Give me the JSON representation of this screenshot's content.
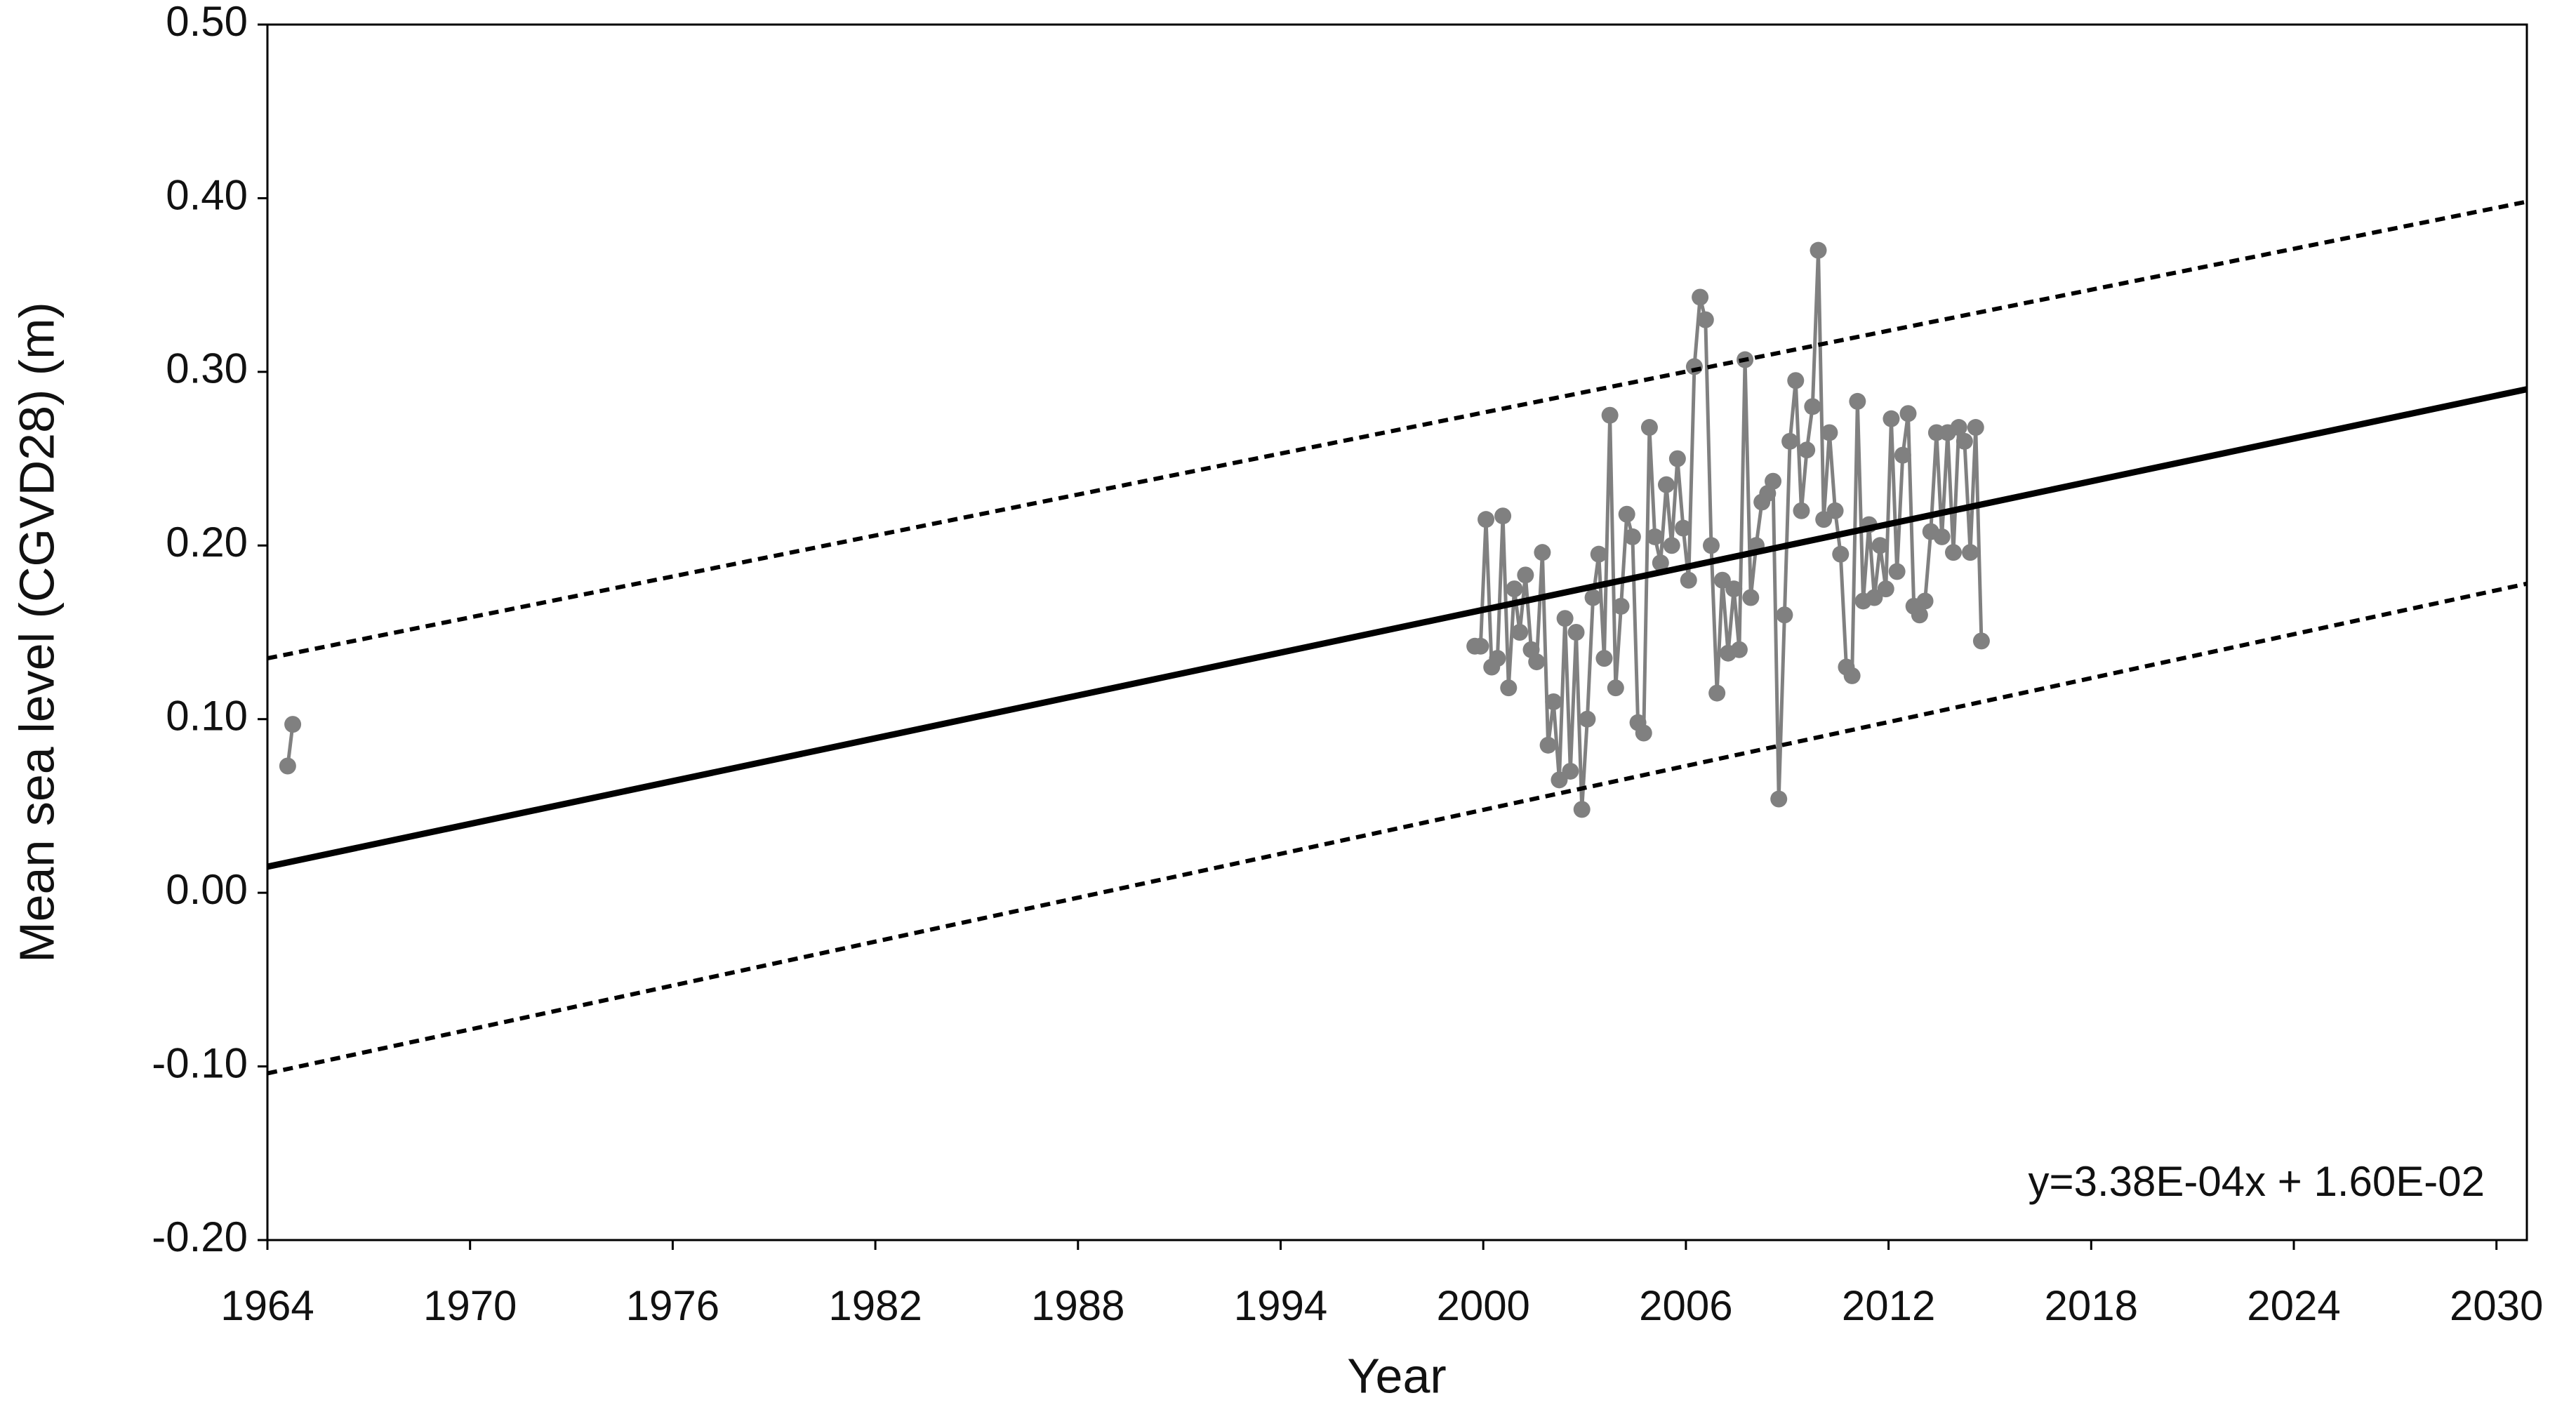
{
  "chart_data": {
    "type": "line",
    "xlabel": "Year",
    "ylabel": "Mean sea level (CGVD28) (m)",
    "annotation": "y=3.38E-04x + 1.60E-02",
    "xlim": [
      1964,
      2030.9
    ],
    "ylim": [
      -0.2,
      0.5
    ],
    "xticks": [
      1964,
      1970,
      1976,
      1982,
      1988,
      1994,
      2000,
      2006,
      2012,
      2018,
      2024,
      2030
    ],
    "yticks": [
      {
        "value": -0.2,
        "label": "-0.20"
      },
      {
        "value": -0.1,
        "label": "-0.10"
      },
      {
        "value": 0,
        "label": "0.00"
      },
      {
        "value": 0.1,
        "label": "0.10"
      },
      {
        "value": 0.2,
        "label": "0.20"
      },
      {
        "value": 0.3,
        "label": "0.30"
      },
      {
        "value": 0.4,
        "label": "0.40"
      },
      {
        "value": 0.5,
        "label": "0.50"
      }
    ],
    "grid": false,
    "series": [
      {
        "color": "#808080",
        "style": "markers",
        "x": [
          1964.6,
          1964.75
        ],
        "values": [
          0.073,
          0.097
        ]
      },
      {
        "color": "#808080",
        "style": "markers",
        "x": [
          1999.75,
          1999.92,
          2000.08,
          2000.25,
          2000.42,
          2000.58,
          2000.75,
          2000.92,
          2001.08,
          2001.25,
          2001.42,
          2001.58,
          2001.75,
          2001.92,
          2002.08,
          2002.25,
          2002.42,
          2002.58,
          2002.75,
          2002.92,
          2003.08,
          2003.25,
          2003.42,
          2003.58,
          2003.75,
          2003.92,
          2004.08,
          2004.25,
          2004.42,
          2004.58,
          2004.75,
          2004.92,
          2005.08,
          2005.25,
          2005.42,
          2005.58,
          2005.75,
          2005.92,
          2006.08,
          2006.25,
          2006.42,
          2006.58,
          2006.75,
          2006.92,
          2007.08,
          2007.25,
          2007.42,
          2007.58,
          2007.75,
          2007.92,
          2008.08,
          2008.25,
          2008.42,
          2008.58,
          2008.75,
          2008.92,
          2009.08,
          2009.25,
          2009.42,
          2009.58,
          2009.75,
          2009.92,
          2010.08,
          2010.25,
          2010.42,
          2010.58,
          2010.75,
          2010.92,
          2011.08,
          2011.25,
          2011.42,
          2011.58,
          2011.75,
          2011.92,
          2012.08,
          2012.25,
          2012.42,
          2012.58,
          2012.75,
          2012.92,
          2013.08,
          2013.25,
          2013.42,
          2013.58,
          2013.75,
          2013.92,
          2014.08,
          2014.25,
          2014.42,
          2014.58,
          2014.75
        ],
        "values": [
          0.142,
          0.142,
          0.215,
          0.13,
          0.135,
          0.217,
          0.118,
          0.175,
          0.15,
          0.183,
          0.14,
          0.133,
          0.196,
          0.085,
          0.11,
          0.065,
          0.158,
          0.07,
          0.15,
          0.048,
          0.1,
          0.17,
          0.195,
          0.135,
          0.275,
          0.118,
          0.165,
          0.218,
          0.205,
          0.098,
          0.092,
          0.268,
          0.205,
          0.19,
          0.235,
          0.2,
          0.25,
          0.21,
          0.18,
          0.303,
          0.343,
          0.33,
          0.2,
          0.115,
          0.18,
          0.138,
          0.175,
          0.14,
          0.307,
          0.17,
          0.2,
          0.225,
          0.23,
          0.237,
          0.054,
          0.16,
          0.26,
          0.295,
          0.22,
          0.255,
          0.28,
          0.37,
          0.215,
          0.265,
          0.22,
          0.195,
          0.13,
          0.125,
          0.283,
          0.168,
          0.212,
          0.17,
          0.2,
          0.175,
          0.273,
          0.185,
          0.252,
          0.276,
          0.165,
          0.16,
          0.168,
          0.208,
          0.265,
          0.205,
          0.265,
          0.196,
          0.268,
          0.26,
          0.196,
          0.268,
          0.145
        ]
      },
      {
        "color": "#000000",
        "style": "solid",
        "x": [
          1964,
          2030.9
        ],
        "values": [
          0.015,
          0.29
        ]
      },
      {
        "color": "#000000",
        "style": "dashed",
        "x": [
          1964,
          2030.9
        ],
        "values": [
          0.135,
          0.398
        ]
      },
      {
        "color": "#000000",
        "style": "dashed",
        "x": [
          1964,
          2030.9
        ],
        "values": [
          -0.104,
          0.178
        ]
      }
    ]
  }
}
